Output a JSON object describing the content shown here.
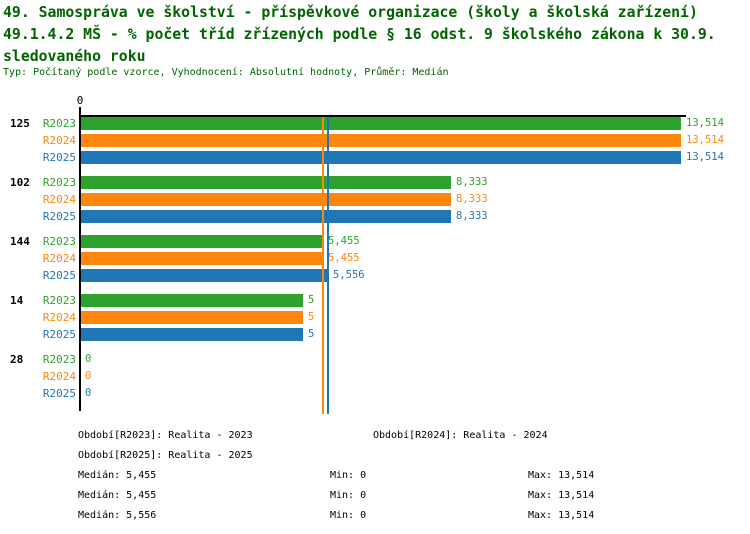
{
  "title": {
    "line1": "49. Samospráva ve školství - příspěvkové organizace (školy a školská zařízení)",
    "line2": "49.1.4.2 MŠ - % počet tříd zřízených podle § 16 odst. 9 školského zákona k 30.9.",
    "line3": "sledovaného roku",
    "subtitle": "Typ: Počítaný podle vzorce, Vyhodnocení: Absolutní hodnoty, Průměr: Medián"
  },
  "colors": {
    "title_text": "#006400",
    "axis": "#000000",
    "r2023": "#2EA22E",
    "r2024": "#FF860D",
    "r2025": "#2176B5"
  },
  "axis": {
    "zero_tick_label": "0"
  },
  "chart_data": {
    "type": "bar",
    "orientation": "horizontal",
    "title": "49.1.4.2 MŠ - % počet tříd zřízených podle § 16 odst. 9 školského zákona k 30.9. sledovaného roku",
    "categories": [
      "125",
      "102",
      "144",
      "14",
      "28"
    ],
    "series": [
      {
        "id": "R2023",
        "name": "Realita - 2023",
        "color": "#2EA22E",
        "values": [
          13.514,
          8.333,
          5.455,
          5,
          0
        ],
        "value_labels": [
          "13,514",
          "8,333",
          "5,455",
          "5",
          "0"
        ],
        "median": 5.455
      },
      {
        "id": "R2024",
        "name": "Realita - 2024",
        "color": "#FF860D",
        "values": [
          13.514,
          8.333,
          5.455,
          5,
          0
        ],
        "value_labels": [
          "13,514",
          "8,333",
          "5,455",
          "5",
          "0"
        ],
        "median": 5.455
      },
      {
        "id": "R2025",
        "name": "Realita - 2025",
        "color": "#2176B5",
        "values": [
          13.514,
          8.333,
          5.556,
          5,
          0
        ],
        "value_labels": [
          "13,514",
          "8,333",
          "5,556",
          "5",
          "0"
        ],
        "median": 5.556
      }
    ],
    "xlim": [
      0,
      13.514
    ],
    "x_tick_labels": [
      "0"
    ],
    "grid": false,
    "median_lines_shown": true,
    "legend_position": "bottom"
  },
  "legend": {
    "r2023": "Období[R2023]: Realita - 2023",
    "r2024": "Období[R2024]: Realita - 2024",
    "r2025": "Období[R2025]: Realita - 2025"
  },
  "stats": {
    "r2023": {
      "median": "Medián: 5,455",
      "min": "Min: 0",
      "max": "Max: 13,514"
    },
    "r2024": {
      "median": "Medián: 5,455",
      "min": "Min: 0",
      "max": "Max: 13,514"
    },
    "r2025": {
      "median": "Medián: 5,556",
      "min": "Min: 0",
      "max": "Max: 13,514"
    }
  }
}
